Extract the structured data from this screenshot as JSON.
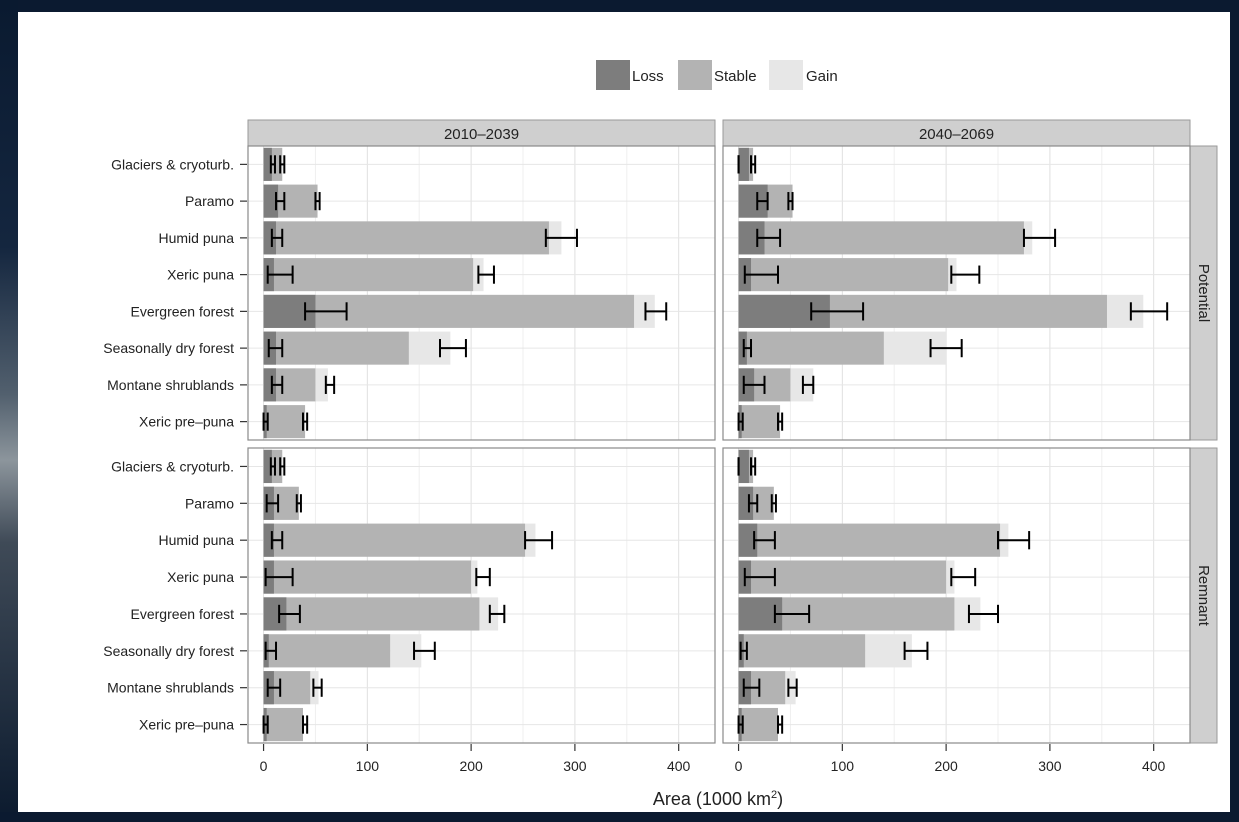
{
  "chart_data": {
    "type": "bar",
    "orientation": "horizontal",
    "stacked": true,
    "legend": {
      "position": "top",
      "entries": [
        {
          "key": "loss",
          "label": "Loss",
          "color": "#7d7d7d"
        },
        {
          "key": "stable",
          "label": "Stable",
          "color": "#b3b3b3"
        },
        {
          "key": "gain",
          "label": "Gain",
          "color": "#e7e7e7"
        }
      ]
    },
    "columns": [
      "2010–2039",
      "2040–2069"
    ],
    "rows": [
      "Potential",
      "Remnant"
    ],
    "categories": [
      "Glaciers & cryoturb.",
      "Paramo",
      "Humid puna",
      "Xeric puna",
      "Evergreen forest",
      "Seasonally dry forest",
      "Montane shrublands",
      "Xeric pre–puna"
    ],
    "xlabel": "Area (1000 km²)",
    "xlabel_main": "Area (1000 km",
    "xlabel_sup": "2",
    "xlabel_close": ")",
    "xlim": [
      -15,
      435
    ],
    "xticks": [
      0,
      100,
      200,
      300,
      400
    ],
    "grid": true,
    "panels": [
      {
        "column": "2010–2039",
        "row": "Potential",
        "loss": [
          8,
          14,
          12,
          10,
          50,
          12,
          12,
          3
        ],
        "stable": [
          18,
          52,
          275,
          202,
          357,
          140,
          50,
          40
        ],
        "gain": [
          0,
          0,
          12,
          10,
          20,
          40,
          12,
          0
        ],
        "err_lo": [
          7,
          12,
          8,
          4,
          40,
          5,
          8,
          0
        ],
        "err_hi": [
          11,
          20,
          18,
          28,
          80,
          18,
          18,
          4
        ],
        "tot_lo": [
          16,
          50,
          272,
          207,
          368,
          170,
          60,
          38
        ],
        "tot_hi": [
          20,
          54,
          302,
          222,
          388,
          195,
          68,
          42
        ]
      },
      {
        "column": "2040–2069",
        "row": "Potential",
        "loss": [
          10,
          28,
          25,
          12,
          88,
          8,
          15,
          3
        ],
        "stable": [
          14,
          52,
          275,
          202,
          355,
          140,
          50,
          40
        ],
        "gain": [
          0,
          0,
          8,
          8,
          35,
          60,
          22,
          0
        ],
        "err_lo": [
          0,
          18,
          18,
          6,
          70,
          5,
          5,
          0
        ],
        "err_hi": [
          0,
          28,
          40,
          38,
          120,
          12,
          25,
          4
        ],
        "tot_lo": [
          12,
          48,
          275,
          205,
          378,
          185,
          62,
          38
        ],
        "tot_hi": [
          16,
          52,
          305,
          232,
          413,
          215,
          72,
          42
        ]
      },
      {
        "column": "2010–2039",
        "row": "Remnant",
        "loss": [
          8,
          10,
          10,
          10,
          22,
          5,
          10,
          3
        ],
        "stable": [
          18,
          34,
          252,
          200,
          208,
          122,
          45,
          38
        ],
        "gain": [
          0,
          0,
          10,
          6,
          18,
          30,
          8,
          0
        ],
        "err_lo": [
          7,
          3,
          8,
          2,
          15,
          2,
          4,
          0
        ],
        "err_hi": [
          11,
          14,
          18,
          28,
          35,
          12,
          16,
          4
        ],
        "tot_lo": [
          16,
          32,
          252,
          205,
          218,
          145,
          48,
          38
        ],
        "tot_hi": [
          20,
          36,
          278,
          218,
          232,
          165,
          56,
          42
        ]
      },
      {
        "column": "2040–2069",
        "row": "Remnant",
        "loss": [
          10,
          14,
          18,
          12,
          42,
          5,
          12,
          3
        ],
        "stable": [
          14,
          34,
          252,
          200,
          208,
          122,
          45,
          38
        ],
        "gain": [
          0,
          0,
          8,
          8,
          25,
          45,
          10,
          0
        ],
        "err_lo": [
          0,
          10,
          15,
          6,
          35,
          2,
          5,
          0
        ],
        "err_hi": [
          0,
          18,
          35,
          35,
          68,
          8,
          20,
          4
        ],
        "tot_lo": [
          12,
          32,
          250,
          205,
          222,
          160,
          48,
          38
        ],
        "tot_hi": [
          16,
          36,
          280,
          228,
          250,
          182,
          56,
          42
        ]
      }
    ]
  }
}
